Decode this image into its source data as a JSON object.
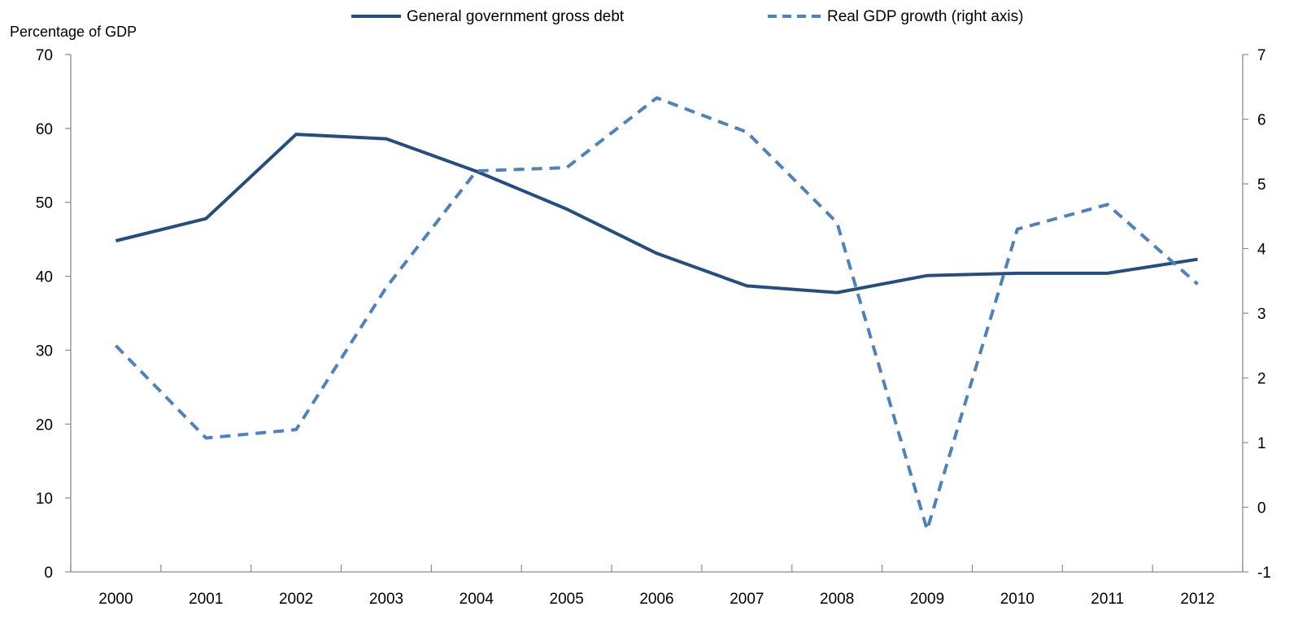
{
  "chart_data": {
    "type": "line",
    "title": "",
    "y_left_label": "Percentage of GDP",
    "y_left_lim": [
      0,
      70
    ],
    "y_left_ticks": [
      0,
      10,
      20,
      30,
      40,
      50,
      60,
      70
    ],
    "y_right_lim": [
      -1,
      7
    ],
    "y_right_ticks": [
      -1,
      0,
      1,
      2,
      3,
      4,
      5,
      6,
      7
    ],
    "categories": [
      "2000",
      "2001",
      "2002",
      "2003",
      "2004",
      "2005",
      "2006",
      "2007",
      "2008",
      "2009",
      "2010",
      "2011",
      "2012"
    ],
    "grid": false,
    "legend_position": "top",
    "series": [
      {
        "name": "General government gross debt",
        "axis": "left",
        "style": "solid",
        "color": "#254E7E",
        "values": [
          44.8,
          47.8,
          59.2,
          58.6,
          54.2,
          49.1,
          43.1,
          38.7,
          37.8,
          40.1,
          40.4,
          40.4,
          42.3
        ]
      },
      {
        "name": "Real GDP growth (right axis)",
        "axis": "right",
        "style": "dashed",
        "color": "#4F81BD",
        "values": [
          2.5,
          1.07,
          1.2,
          3.4,
          5.2,
          5.25,
          6.33,
          5.8,
          4.4,
          -0.35,
          4.3,
          4.68,
          3.45
        ]
      }
    ]
  }
}
